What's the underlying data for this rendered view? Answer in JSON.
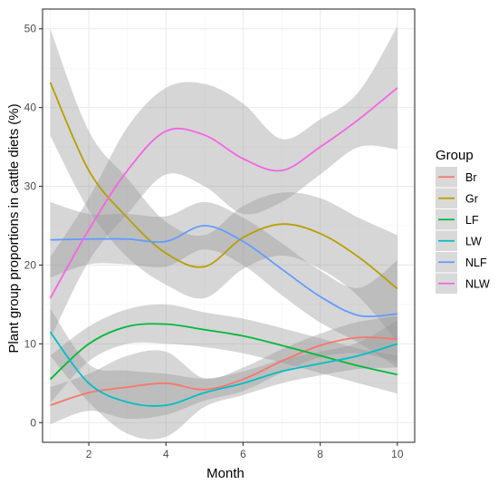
{
  "chart_data": {
    "type": "line",
    "title": "",
    "xlabel": "Month",
    "ylabel": "Plant group proportions in cattle diets (%)",
    "xlim": [
      0.8,
      10.45
    ],
    "ylim": [
      -2.5,
      52.5
    ],
    "x_ticks": [
      2,
      4,
      6,
      8,
      10
    ],
    "y_ticks": [
      0,
      10,
      20,
      30,
      40,
      50
    ],
    "grid": true,
    "legend_placement": "right",
    "legend_title": "Group",
    "x": [
      1,
      2,
      3,
      4,
      5,
      6,
      7,
      8,
      9,
      10
    ],
    "series": [
      {
        "name": "Br",
        "color": "#F8766D",
        "values": [
          2.2,
          3.8,
          4.5,
          5.0,
          4.2,
          5.5,
          7.8,
          9.8,
          10.8,
          10.6
        ],
        "upper": [
          4.5,
          6.2,
          8.5,
          9.0,
          5.6,
          7.0,
          9.3,
          11.3,
          12.8,
          13.5
        ],
        "lower": [
          -0.2,
          1.5,
          0.5,
          1.0,
          2.8,
          4.0,
          6.3,
          8.3,
          8.8,
          7.7
        ]
      },
      {
        "name": "Gr",
        "color": "#B79F00",
        "values": [
          43.2,
          32.0,
          26.0,
          21.5,
          19.8,
          23.5,
          25.2,
          24.0,
          21.0,
          17.0
        ],
        "upper": [
          50.0,
          37.0,
          31.0,
          25.5,
          23.8,
          27.5,
          29.2,
          28.5,
          26.0,
          23.8
        ],
        "lower": [
          36.4,
          27.0,
          21.0,
          17.5,
          15.8,
          19.5,
          21.2,
          19.5,
          16.0,
          10.2
        ]
      },
      {
        "name": "LF",
        "color": "#00BA38",
        "values": [
          5.5,
          10.0,
          12.2,
          12.5,
          11.8,
          11.0,
          9.8,
          8.5,
          7.2,
          6.1
        ],
        "upper": [
          8.5,
          12.2,
          14.4,
          15.0,
          14.0,
          13.2,
          12.0,
          10.7,
          9.4,
          8.5
        ],
        "lower": [
          2.5,
          7.8,
          10.0,
          10.0,
          9.6,
          8.8,
          7.6,
          6.3,
          5.0,
          3.7
        ]
      },
      {
        "name": "LW",
        "color": "#00BFC4",
        "values": [
          11.5,
          5.0,
          2.6,
          2.2,
          3.8,
          5.0,
          6.5,
          7.5,
          8.5,
          10.0
        ],
        "upper": [
          14.5,
          7.4,
          6.6,
          6.2,
          5.6,
          6.5,
          8.0,
          9.0,
          10.2,
          13.0
        ],
        "lower": [
          8.5,
          2.6,
          -1.4,
          -1.8,
          2.0,
          3.5,
          5.0,
          6.0,
          6.8,
          7.0
        ]
      },
      {
        "name": "NLF",
        "color": "#619CFF",
        "values": [
          23.2,
          23.3,
          23.3,
          23.0,
          25.0,
          23.0,
          19.5,
          16.0,
          13.6,
          13.8
        ],
        "upper": [
          28.0,
          26.5,
          26.5,
          26.2,
          28.0,
          26.0,
          22.8,
          19.3,
          17.1,
          20.6
        ],
        "lower": [
          18.4,
          20.1,
          20.1,
          19.8,
          22.0,
          20.0,
          16.2,
          12.7,
          10.1,
          7.0
        ]
      },
      {
        "name": "NLW",
        "color": "#F564E3",
        "values": [
          15.8,
          24.5,
          32.0,
          37.0,
          36.5,
          33.5,
          32.0,
          35.0,
          38.5,
          42.5
        ],
        "upper": [
          21.0,
          28.5,
          37.5,
          42.5,
          43.0,
          40.5,
          36.0,
          38.5,
          42.0,
          50.3
        ],
        "lower": [
          10.6,
          20.5,
          26.5,
          31.5,
          30.0,
          26.5,
          28.0,
          31.5,
          35.0,
          34.7
        ]
      }
    ]
  }
}
